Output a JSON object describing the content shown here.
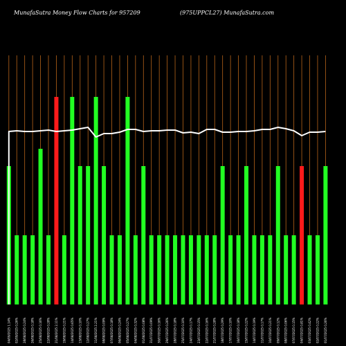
{
  "header": {
    "title": "MunafaSutra  Money Flow  Charts for 957209",
    "subtitle": "(975UPPCL27) MunafaSutra.com"
  },
  "colors": {
    "background": "#000000",
    "grid": "#b8651a",
    "up": "#22ff22",
    "down": "#ff1a1a",
    "line": "#ffffff"
  },
  "chart_data": {
    "type": "bar",
    "grid": "vertical",
    "ylim": [
      0,
      3
    ],
    "categories": [
      "04/09/2025 1.14%",
      "02/09/2025 0.26%",
      "28/08/2025 0.24%",
      "26/08/2025 0.18%",
      "25/08/2025 0.16%",
      "22/08/2025 0.28%",
      "21/08/2025 2.11%",
      "19/08/2025 0.21%",
      "14/08/2025 0.65%",
      "13/08/2025 0.10%",
      "12/08/2025 0.27%",
      "11/08/2025 2.21%",
      "08/08/2025 0.09%",
      "07/08/2025 0.18%",
      "06/08/2025 0.24%",
      "05/08/2025 0.27%",
      "04/08/2025 0.32%",
      "01/08/2025 0.08%",
      "31/07/2025 0.09%",
      "30/07/2025 0.16%",
      "29/07/2025 0.26%",
      "28/07/2025 0.18%",
      "25/07/2025 0.10%",
      "24/07/2025 0.17%",
      "23/07/2025 0.15%",
      "22/07/2025 0.16%",
      "21/07/2025 0.28%",
      "18/07/2025 0.29%",
      "17/07/2025 0.10%",
      "16/07/2025 0.18%",
      "15/07/2025 0.22%",
      "14/07/2025 0.19%",
      "11/07/2025 0.17%",
      "10/07/2025 0.21%",
      "09/07/2025 0.12%",
      "08/07/2025 0.06%",
      "07/07/2025 0.15%",
      "04/07/2025 0.81%",
      "03/07/2025 0.42%",
      "02/07/2025 0.22%",
      "01/07/2025 0.26%"
    ],
    "series": [
      {
        "values": [
          2,
          1,
          1,
          1,
          2.25,
          1,
          3,
          1,
          3,
          2,
          2,
          3,
          2,
          1,
          1,
          3,
          1,
          2,
          1,
          1,
          1,
          1,
          1,
          1,
          1,
          1,
          1,
          2,
          1,
          1,
          2,
          1,
          1,
          1,
          2,
          1,
          1,
          2,
          1,
          1,
          2
        ],
        "directions": [
          "up",
          "up",
          "up",
          "up",
          "up",
          "up",
          "down",
          "up",
          "up",
          "up",
          "up",
          "up",
          "up",
          "up",
          "up",
          "up",
          "up",
          "up",
          "up",
          "up",
          "up",
          "up",
          "up",
          "up",
          "up",
          "up",
          "up",
          "up",
          "up",
          "up",
          "up",
          "up",
          "up",
          "up",
          "up",
          "up",
          "up",
          "down",
          "up",
          "up",
          "up"
        ]
      },
      {
        "type": "line",
        "values": [
          2.5,
          2.51,
          2.5,
          2.5,
          2.51,
          2.52,
          2.5,
          2.51,
          2.52,
          2.54,
          2.56,
          2.42,
          2.47,
          2.47,
          2.49,
          2.53,
          2.53,
          2.5,
          2.51,
          2.51,
          2.52,
          2.52,
          2.48,
          2.49,
          2.47,
          2.53,
          2.53,
          2.49,
          2.49,
          2.5,
          2.5,
          2.51,
          2.53,
          2.53,
          2.56,
          2.54,
          2.51,
          2.44,
          2.49,
          2.49,
          2.5
        ]
      }
    ]
  }
}
